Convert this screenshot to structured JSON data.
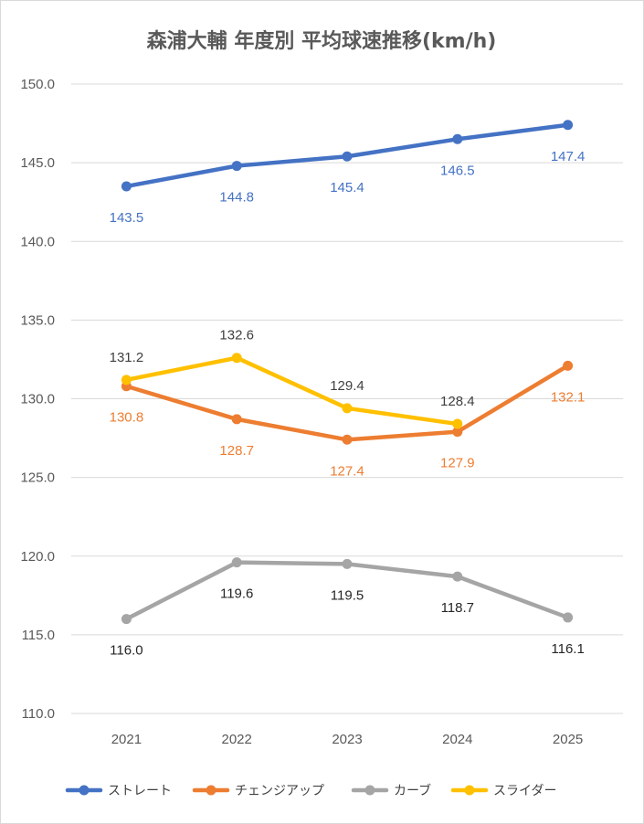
{
  "chart_data": {
    "type": "line",
    "title": "森浦大輔 年度別 平均球速推移(km/h)",
    "xlabel": "",
    "ylabel": "",
    "categories": [
      "2021",
      "2022",
      "2023",
      "2024",
      "2025"
    ],
    "ylim": [
      110,
      150
    ],
    "yticks": [
      "110.0",
      "115.0",
      "120.0",
      "125.0",
      "130.0",
      "135.0",
      "140.0",
      "145.0",
      "150.0"
    ],
    "grid": true,
    "legend_position": "bottom",
    "series": [
      {
        "name": "ストレート",
        "color": "#4472C4",
        "label_color": "#4472C4",
        "values": [
          143.5,
          144.8,
          145.4,
          146.5,
          147.4
        ],
        "labels": [
          "143.5",
          "144.8",
          "145.4",
          "146.5",
          "147.4"
        ],
        "label_pos": [
          "below",
          "below",
          "below",
          "below",
          "below"
        ]
      },
      {
        "name": "チェンジアップ",
        "color": "#ED7D31",
        "label_color": "#ED7D31",
        "values": [
          130.8,
          128.7,
          127.4,
          127.9,
          132.1
        ],
        "labels": [
          "130.8",
          "128.7",
          "127.4",
          "127.9",
          "132.1"
        ],
        "label_pos": [
          "below",
          "below",
          "below",
          "below",
          "below"
        ]
      },
      {
        "name": "カーブ",
        "color": "#A5A5A5",
        "label_color": "#262626",
        "values": [
          116.0,
          119.6,
          119.5,
          118.7,
          116.1
        ],
        "labels": [
          "116.0",
          "119.6",
          "119.5",
          "118.7",
          "116.1"
        ],
        "label_pos": [
          "below",
          "below",
          "below",
          "below",
          "below"
        ]
      },
      {
        "name": "スライダー",
        "color": "#FFC000",
        "label_color": "#404040",
        "values": [
          131.2,
          132.6,
          129.4,
          128.4,
          null
        ],
        "labels": [
          "131.2",
          "132.6",
          "129.4",
          "128.4",
          null
        ],
        "label_pos": [
          "above",
          "above",
          "above",
          "above",
          "above"
        ]
      }
    ]
  }
}
